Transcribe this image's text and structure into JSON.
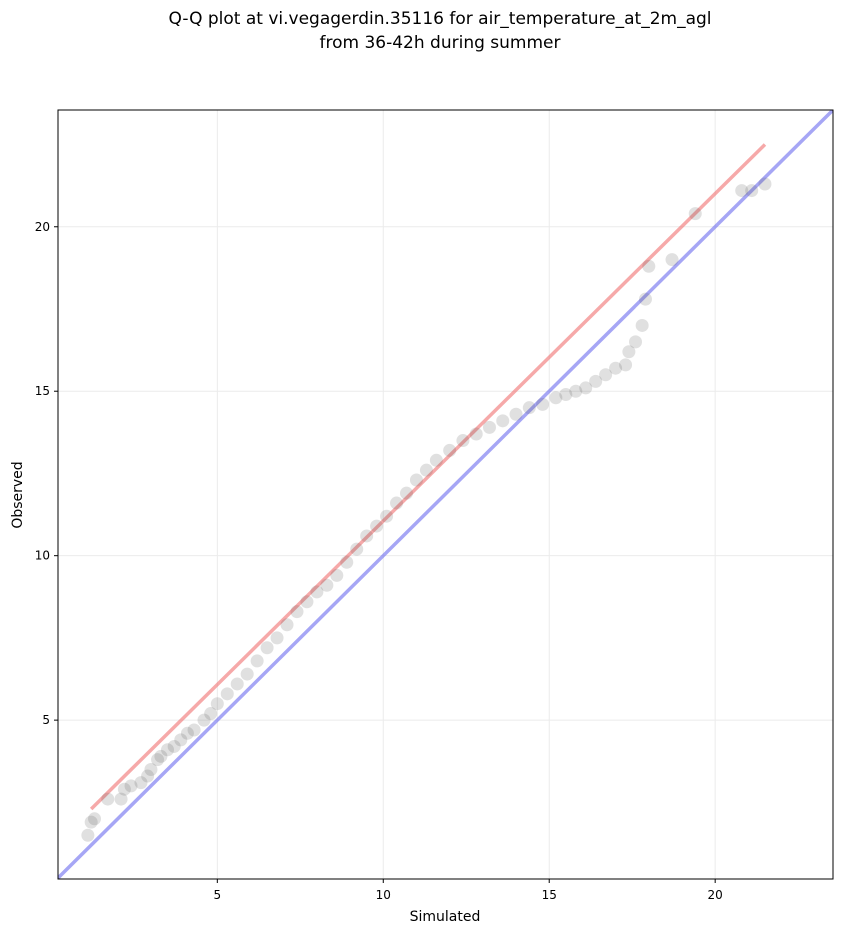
{
  "chart_data": {
    "type": "scatter",
    "title": [
      "Q-Q plot at vi.vegagerdin.35116 for air_temperature_at_2m_agl",
      "from 36-42h during summer"
    ],
    "xlabel": "Simulated",
    "ylabel": "Observed",
    "xlim": [
      0.2,
      23.55
    ],
    "ylim": [
      0.17,
      23.55
    ],
    "xticks": [
      5,
      10,
      15,
      20
    ],
    "yticks": [
      5,
      10,
      15,
      20
    ],
    "grid": true,
    "points": {
      "color": "#555555",
      "x": [
        1.1,
        1.2,
        1.3,
        1.7,
        2.1,
        2.2,
        2.4,
        2.7,
        2.9,
        3.0,
        3.2,
        3.3,
        3.5,
        3.7,
        3.9,
        4.1,
        4.3,
        4.6,
        4.8,
        5.0,
        5.3,
        5.6,
        5.9,
        6.2,
        6.5,
        6.8,
        7.1,
        7.4,
        7.7,
        8.0,
        8.3,
        8.6,
        8.9,
        9.2,
        9.5,
        9.8,
        10.1,
        10.4,
        10.7,
        11.0,
        11.3,
        11.6,
        12.0,
        12.4,
        12.8,
        13.2,
        13.6,
        14.0,
        14.4,
        14.8,
        15.2,
        15.5,
        15.8,
        16.1,
        16.4,
        16.7,
        17.0,
        17.3,
        17.4,
        17.6,
        17.8,
        17.9,
        18.0,
        18.7,
        19.4,
        20.8,
        21.1,
        21.5
      ],
      "y": [
        1.5,
        1.9,
        2.0,
        2.6,
        2.6,
        2.9,
        3.0,
        3.1,
        3.3,
        3.5,
        3.8,
        3.9,
        4.1,
        4.2,
        4.4,
        4.6,
        4.7,
        5.0,
        5.2,
        5.5,
        5.8,
        6.1,
        6.4,
        6.8,
        7.2,
        7.5,
        7.9,
        8.3,
        8.6,
        8.9,
        9.1,
        9.4,
        9.8,
        10.2,
        10.6,
        10.9,
        11.2,
        11.6,
        11.9,
        12.3,
        12.6,
        12.9,
        13.2,
        13.5,
        13.7,
        13.9,
        14.1,
        14.3,
        14.5,
        14.6,
        14.8,
        14.9,
        15.0,
        15.1,
        15.3,
        15.5,
        15.7,
        15.8,
        16.2,
        16.5,
        17.0,
        17.8,
        18.8,
        19.0,
        20.4,
        21.1,
        21.1,
        21.3
      ]
    },
    "lines": [
      {
        "color": "#f07070",
        "x": [
          1.2,
          21.5
        ],
        "y": [
          2.3,
          22.5
        ]
      },
      {
        "color": "#6a6aee",
        "x": [
          0,
          24
        ],
        "y": [
          0,
          24
        ]
      }
    ]
  }
}
